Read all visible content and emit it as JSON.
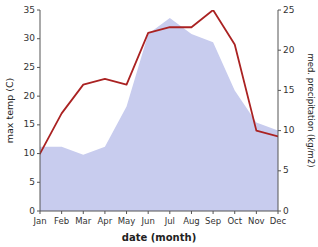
{
  "chart_data": {
    "type": "line",
    "categories": [
      "Jan",
      "Feb",
      "Mar",
      "Apr",
      "May",
      "Jun",
      "Jul",
      "Aug",
      "Sep",
      "Oct",
      "Nov",
      "Dec"
    ],
    "xlabel": "date (month)",
    "ylabel": "max temp (C)",
    "y2label": "med. precipitation (kg/m2)",
    "series": [
      {
        "type": "area",
        "color": "#c8ccee",
        "axis": "y2",
        "values": [
          8,
          8,
          7,
          8,
          13,
          22,
          24,
          22,
          21,
          15,
          11,
          10
        ]
      },
      {
        "type": "line",
        "color": "#aa2222",
        "values": [
          10,
          17,
          22,
          23,
          22,
          31,
          32,
          32,
          35,
          29,
          14,
          13
        ]
      }
    ],
    "ylim": [
      0,
      35
    ],
    "yticks": [
      0,
      5,
      10,
      15,
      20,
      25,
      30,
      35
    ],
    "y2lim": [
      0,
      25
    ],
    "y2ticks": [
      0,
      5,
      10,
      15,
      20,
      25
    ],
    "grid": false
  }
}
